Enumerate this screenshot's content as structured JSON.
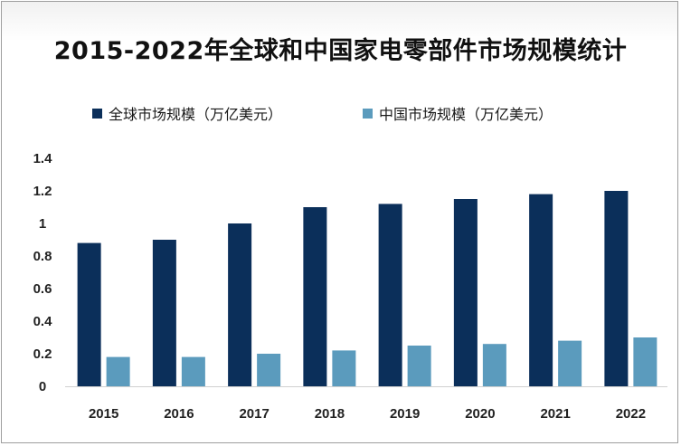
{
  "title": "2015-2022年全球和中国家电零部件市场规模统计",
  "colors": {
    "global": "#0b2f5a",
    "china": "#5b9bbd"
  },
  "chart_data": {
    "type": "bar",
    "title": "2015-2022年全球和中国家电零部件市场规模统计",
    "xlabel": "",
    "ylabel": "",
    "categories": [
      "2015",
      "2016",
      "2017",
      "2018",
      "2019",
      "2020",
      "2021",
      "2022"
    ],
    "series": [
      {
        "name": "全球市场规模（万亿美元）",
        "values": [
          0.88,
          0.9,
          1.0,
          1.1,
          1.12,
          1.15,
          1.18,
          1.2
        ]
      },
      {
        "name": "中国市场规模（万亿美元）",
        "values": [
          0.18,
          0.18,
          0.2,
          0.22,
          0.25,
          0.26,
          0.28,
          0.3
        ]
      }
    ],
    "ylim": [
      0,
      1.4
    ],
    "yticks": [
      "0",
      "0.2",
      "0.4",
      "0.6",
      "0.8",
      "1",
      "1.2",
      "1.4"
    ],
    "grid": false,
    "legend_position": "top"
  }
}
